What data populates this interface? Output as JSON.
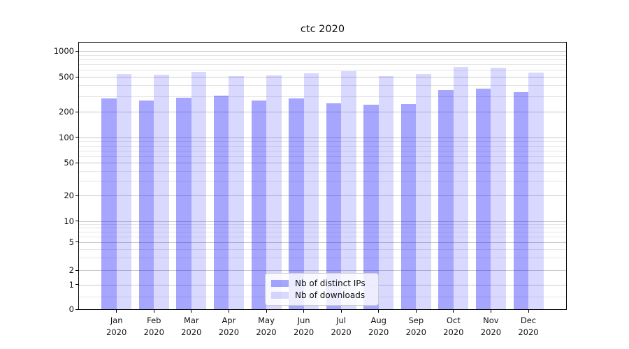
{
  "title": "ctc 2020",
  "chart_data": {
    "type": "bar",
    "title": "ctc 2020",
    "yscale": "symlog",
    "grid": true,
    "legend_position": "lower center",
    "yticks": [
      0,
      1,
      2,
      5,
      10,
      20,
      50,
      100,
      200,
      500,
      1000
    ],
    "minor_yticks": [
      0.5,
      3,
      4,
      6,
      7,
      8,
      9,
      30,
      40,
      60,
      70,
      80,
      90,
      300,
      400,
      600,
      700,
      800,
      900
    ],
    "ylim": [
      0,
      1150
    ],
    "months": [
      "Jan",
      "Feb",
      "Mar",
      "Apr",
      "May",
      "Jun",
      "Jul",
      "Aug",
      "Sep",
      "Oct",
      "Nov",
      "Dec"
    ],
    "year": "2020",
    "categories": [
      "Jan 2020",
      "Feb 2020",
      "Mar 2020",
      "Apr 2020",
      "May 2020",
      "Jun 2020",
      "Jul 2020",
      "Aug 2020",
      "Sep 2020",
      "Oct 2020",
      "Nov 2020",
      "Dec 2020"
    ],
    "series": [
      {
        "name": "Nb of distinct IPs",
        "color": "rgba(0,0,255,0.35)",
        "values": [
          285,
          267,
          288,
          306,
          266,
          283,
          249,
          242,
          244,
          352,
          369,
          336
        ]
      },
      {
        "name": "Nb of downloads",
        "color": "rgba(0,0,255,0.15)",
        "values": [
          536,
          526,
          571,
          511,
          520,
          553,
          578,
          514,
          543,
          658,
          634,
          564
        ]
      }
    ]
  },
  "colors": {
    "background": "#ffffff",
    "spine": "#000000",
    "grid_major": "#c9c9c9",
    "grid_minor": "#e5e5e5",
    "text": "#111111",
    "legend_border": "#cccccc",
    "legend_background": "rgba(255,255,255,0.8)"
  }
}
